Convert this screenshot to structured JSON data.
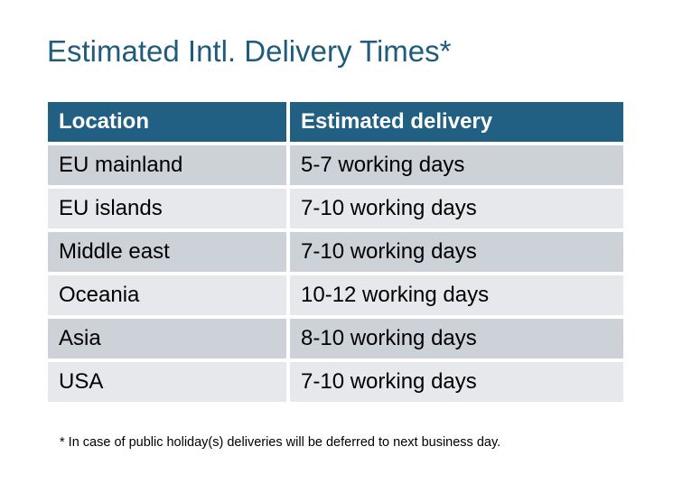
{
  "title": "Estimated Intl. Delivery Times*",
  "table": {
    "headers": [
      "Location",
      "Estimated delivery"
    ],
    "rows": [
      [
        "EU mainland",
        "5-7 working days"
      ],
      [
        "EU islands",
        "7-10 working days"
      ],
      [
        "Middle east",
        "7-10 working days"
      ],
      [
        "Oceania",
        "10-12 working days"
      ],
      [
        "Asia",
        "8-10 working days"
      ],
      [
        "USA",
        "7-10 working days"
      ]
    ]
  },
  "footnote": "* In case of public holiday(s) deliveries will be deferred to next business day.",
  "colors": {
    "header": "#216083",
    "title": "#1f5b7c",
    "row_dark": "#cdd1d8",
    "row_light": "#e6e8eb"
  }
}
